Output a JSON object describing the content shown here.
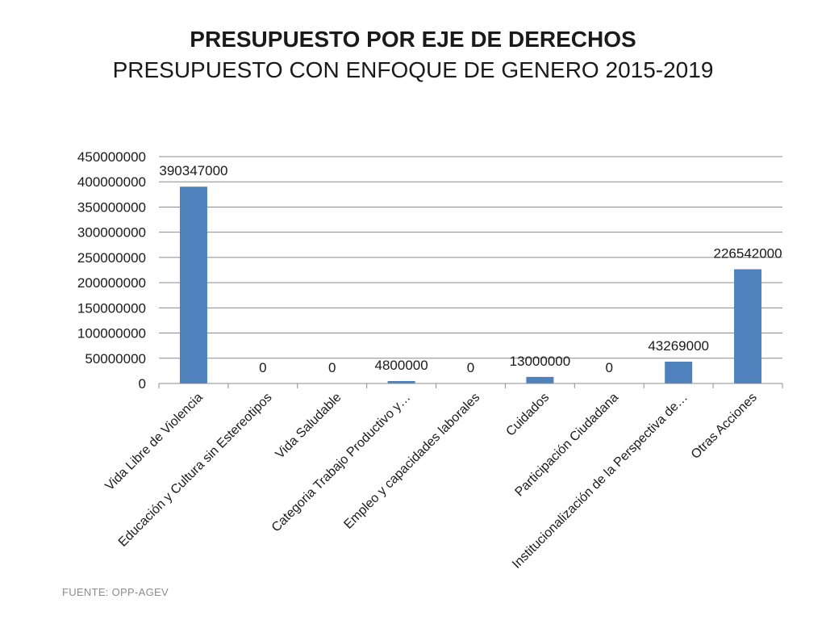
{
  "header": {
    "title": "PRESUPUESTO POR EJE DE DERECHOS",
    "subtitle": "PRESUPUESTO CON ENFOQUE DE GENERO 2015-2019"
  },
  "footer": {
    "source": "FUENTE: OPP-AGEV"
  },
  "chart_data": {
    "type": "bar",
    "title": "PRESUPUESTO POR EJE DE DERECHOS",
    "subtitle": "PRESUPUESTO CON ENFOQUE DE GENERO 2015-2019",
    "xlabel": "",
    "ylabel": "",
    "ylim": [
      0,
      450000000
    ],
    "ytick_step": 50000000,
    "grid": true,
    "bar_color": "#4f81bd",
    "categories": [
      "Vida Libre de Violencia",
      "Educación y Cultura sin Estereotipos",
      "Vida Saludable",
      "Categoria Trabajo Productivo y…",
      "Empleo y capacidades laborales",
      "Cuidados",
      "Participación Ciudadana",
      "Institucionalización de la Perspectiva de…",
      "Otras Acciones"
    ],
    "values": [
      390347000,
      0,
      0,
      4800000,
      0,
      13000000,
      0,
      43269000,
      226542000
    ],
    "data_labels": [
      "390347000",
      "0",
      "0",
      "4800000",
      "0",
      "13000000",
      "0",
      "43269000",
      "226542000"
    ]
  }
}
